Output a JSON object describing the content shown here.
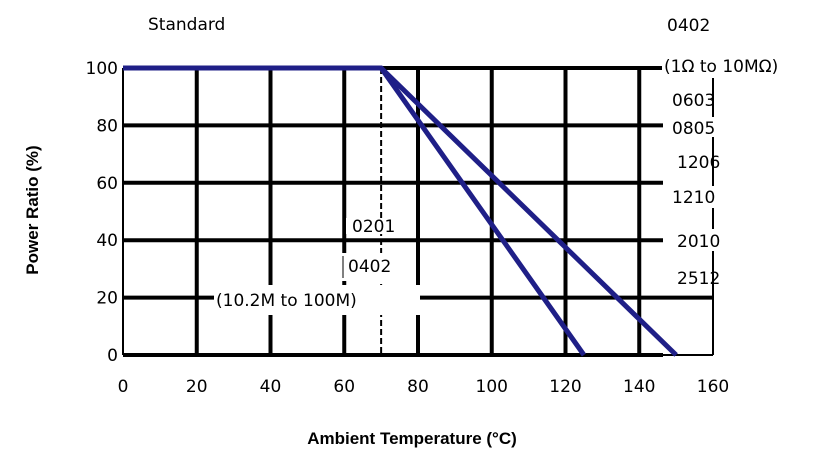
{
  "chart_data": {
    "type": "line",
    "title": "Standard",
    "xlabel": "Ambient Temperature (°C)",
    "ylabel": "Power Ratio (%)",
    "xlim": [
      0,
      160
    ],
    "ylim": [
      0,
      100
    ],
    "x_ticks": [
      "0",
      "20",
      "40",
      "60",
      "80",
      "100",
      "120",
      "140",
      "160"
    ],
    "y_ticks": [
      "0",
      "20",
      "40",
      "60",
      "80",
      "100"
    ],
    "grid": true,
    "line_color": "#1f1f87",
    "series": [
      {
        "x": [
          0,
          70,
          125
        ],
        "y": [
          100,
          100,
          0
        ]
      },
      {
        "x": [
          0,
          70,
          150
        ],
        "y": [
          100,
          100,
          0
        ]
      }
    ],
    "reference_lines": [
      {
        "x": 70
      }
    ],
    "annotations_left": [
      "0201",
      "0402",
      "(10.2M to 100M)"
    ],
    "annotations_right": [
      "0402",
      "(1Ω to 10MΩ)",
      "0603",
      "0805",
      "1206",
      "1210",
      "2010",
      "2512"
    ]
  }
}
